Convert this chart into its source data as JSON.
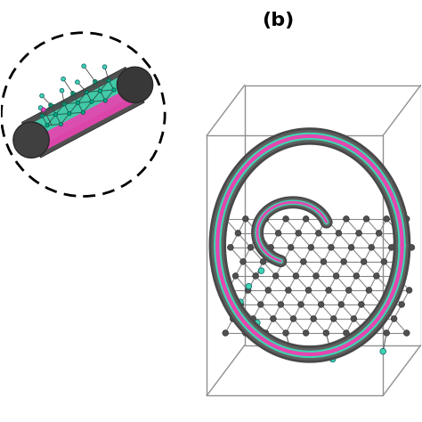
{
  "title": "(b)",
  "title_fontsize": 16,
  "title_fontweight": "bold",
  "bg_color": "#ffffff",
  "dark_gray": "#606060",
  "dark_gray2": "#484848",
  "teal": "#40d4b0",
  "pink": "#e844b0",
  "graphene_node": "#505050",
  "graphene_bond": "#888888",
  "light_gray": "#b0b0b0",
  "box_color": "#909090"
}
